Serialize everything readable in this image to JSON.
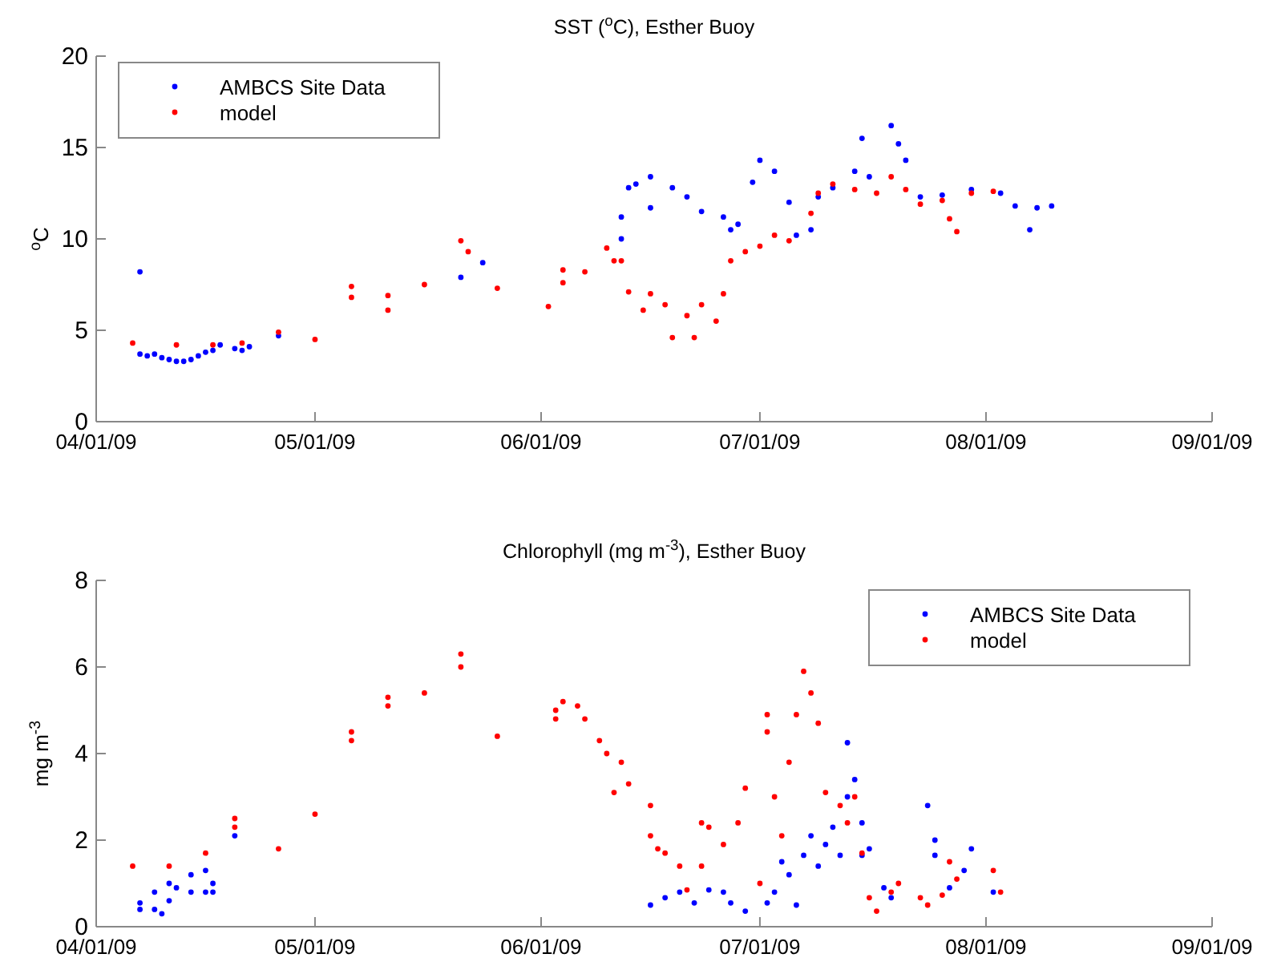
{
  "chart_data": [
    {
      "type": "scatter",
      "title": "SST ($^{o}$C), Esther Buoy",
      "ylabel": "$^{o}$C",
      "xlim": [
        "2009-04-01",
        "2009-09-01"
      ],
      "xticks": [
        {
          "value": "2009-04-01",
          "label": "04/01/09"
        },
        {
          "value": "2009-05-01",
          "label": "05/01/09"
        },
        {
          "value": "2009-06-01",
          "label": "06/01/09"
        },
        {
          "value": "2009-07-01",
          "label": "07/01/09"
        },
        {
          "value": "2009-08-01",
          "label": "08/01/09"
        },
        {
          "value": "2009-09-01",
          "label": "09/01/09"
        }
      ],
      "ylim": [
        0,
        20
      ],
      "yticks": [
        0,
        5,
        10,
        15,
        20
      ],
      "legend": "top left",
      "marker": "circle",
      "grid": false,
      "series": [
        {
          "name": "AMBCS Site Data",
          "color": "#0000ff",
          "x": [
            "2009-04-07",
            "2009-04-07",
            "2009-04-08",
            "2009-04-09",
            "2009-04-10",
            "2009-04-11",
            "2009-04-12",
            "2009-04-13",
            "2009-04-14",
            "2009-04-15",
            "2009-04-16",
            "2009-04-17",
            "2009-04-18",
            "2009-04-20",
            "2009-04-21",
            "2009-04-22",
            "2009-04-26",
            "2009-05-21",
            "2009-05-24",
            "2009-06-12",
            "2009-06-12",
            "2009-06-13",
            "2009-06-14",
            "2009-06-16",
            "2009-06-16",
            "2009-06-19",
            "2009-06-21",
            "2009-06-23",
            "2009-06-26",
            "2009-06-27",
            "2009-06-28",
            "2009-06-30",
            "2009-07-01",
            "2009-07-03",
            "2009-07-05",
            "2009-07-06",
            "2009-07-08",
            "2009-07-09",
            "2009-07-11",
            "2009-07-14",
            "2009-07-15",
            "2009-07-16",
            "2009-07-19",
            "2009-07-20",
            "2009-07-21",
            "2009-07-23",
            "2009-07-26",
            "2009-07-30",
            "2009-08-03",
            "2009-08-05",
            "2009-08-07",
            "2009-08-08",
            "2009-08-10"
          ],
          "values": [
            8.2,
            3.7,
            3.6,
            3.7,
            3.5,
            3.4,
            3.3,
            3.3,
            3.4,
            3.6,
            3.8,
            3.9,
            4.2,
            4.0,
            3.9,
            4.1,
            4.7,
            7.9,
            8.7,
            10.0,
            11.2,
            12.8,
            13.0,
            13.4,
            11.7,
            12.8,
            12.3,
            11.5,
            11.2,
            10.5,
            10.8,
            13.1,
            14.3,
            13.7,
            12.0,
            10.2,
            10.5,
            12.3,
            12.8,
            13.7,
            15.5,
            13.4,
            16.2,
            15.2,
            14.3,
            12.3,
            12.4,
            12.7,
            12.5,
            11.8,
            10.5,
            11.7,
            11.8
          ]
        },
        {
          "name": "model",
          "color": "#ff0000",
          "x": [
            "2009-04-06",
            "2009-04-12",
            "2009-04-17",
            "2009-04-21",
            "2009-04-26",
            "2009-05-01",
            "2009-05-06",
            "2009-05-06",
            "2009-05-11",
            "2009-05-11",
            "2009-05-16",
            "2009-05-21",
            "2009-05-22",
            "2009-05-26",
            "2009-06-02",
            "2009-06-04",
            "2009-06-04",
            "2009-06-07",
            "2009-06-10",
            "2009-06-11",
            "2009-06-12",
            "2009-06-13",
            "2009-06-15",
            "2009-06-16",
            "2009-06-18",
            "2009-06-19",
            "2009-06-21",
            "2009-06-22",
            "2009-06-23",
            "2009-06-25",
            "2009-06-26",
            "2009-06-27",
            "2009-06-29",
            "2009-07-01",
            "2009-07-03",
            "2009-07-05",
            "2009-07-08",
            "2009-07-09",
            "2009-07-11",
            "2009-07-14",
            "2009-07-17",
            "2009-07-19",
            "2009-07-21",
            "2009-07-23",
            "2009-07-26",
            "2009-07-27",
            "2009-07-28",
            "2009-07-30",
            "2009-08-02"
          ],
          "values": [
            4.3,
            4.2,
            4.2,
            4.3,
            4.9,
            4.5,
            7.4,
            6.8,
            6.9,
            6.1,
            7.5,
            9.9,
            9.3,
            7.3,
            6.3,
            8.3,
            7.6,
            8.2,
            9.5,
            8.8,
            8.8,
            7.1,
            6.1,
            7.0,
            6.4,
            4.6,
            5.8,
            4.6,
            6.4,
            5.5,
            7.0,
            8.8,
            9.3,
            9.6,
            10.2,
            9.9,
            11.4,
            12.5,
            13.0,
            12.7,
            12.5,
            13.4,
            12.7,
            11.9,
            12.1,
            11.1,
            10.4,
            12.5,
            12.6
          ]
        }
      ]
    },
    {
      "type": "scatter",
      "title": "Chlorophyll (mg m$^{-3}$), Esther Buoy",
      "ylabel": "mg m$^{-3}$",
      "xlim": [
        "2009-04-01",
        "2009-09-01"
      ],
      "xticks": [
        {
          "value": "2009-04-01",
          "label": "04/01/09"
        },
        {
          "value": "2009-05-01",
          "label": "05/01/09"
        },
        {
          "value": "2009-06-01",
          "label": "06/01/09"
        },
        {
          "value": "2009-07-01",
          "label": "07/01/09"
        },
        {
          "value": "2009-08-01",
          "label": "08/01/09"
        },
        {
          "value": "2009-09-01",
          "label": "09/01/09"
        }
      ],
      "ylim": [
        0,
        8
      ],
      "yticks": [
        0,
        2,
        4,
        6,
        8
      ],
      "legend": "top right",
      "marker": "circle",
      "grid": false,
      "series": [
        {
          "name": "AMBCS Site Data",
          "color": "#0000ff",
          "x": [
            "2009-04-07",
            "2009-04-07",
            "2009-04-09",
            "2009-04-09",
            "2009-04-10",
            "2009-04-11",
            "2009-04-11",
            "2009-04-12",
            "2009-04-14",
            "2009-04-14",
            "2009-04-16",
            "2009-04-16",
            "2009-04-17",
            "2009-04-17",
            "2009-04-20",
            "2009-06-16",
            "2009-06-18",
            "2009-06-20",
            "2009-06-22",
            "2009-06-24",
            "2009-06-26",
            "2009-06-27",
            "2009-06-29",
            "2009-07-02",
            "2009-07-03",
            "2009-07-04",
            "2009-07-05",
            "2009-07-06",
            "2009-07-07",
            "2009-07-08",
            "2009-07-09",
            "2009-07-10",
            "2009-07-11",
            "2009-07-12",
            "2009-07-13",
            "2009-07-13",
            "2009-07-14",
            "2009-07-15",
            "2009-07-15",
            "2009-07-16",
            "2009-07-18",
            "2009-07-19",
            "2009-07-24",
            "2009-07-25",
            "2009-07-25",
            "2009-07-27",
            "2009-07-29",
            "2009-07-30",
            "2009-08-02"
          ],
          "values": [
            0.4,
            0.55,
            0.4,
            0.8,
            0.3,
            0.6,
            1.0,
            0.9,
            0.8,
            1.2,
            1.3,
            0.8,
            1.0,
            0.8,
            2.1,
            0.5,
            0.67,
            0.8,
            0.55,
            0.85,
            0.8,
            0.55,
            0.36,
            0.55,
            0.8,
            1.5,
            1.2,
            0.5,
            1.65,
            2.1,
            1.4,
            1.9,
            2.3,
            1.65,
            4.25,
            3.0,
            3.4,
            2.4,
            1.65,
            1.8,
            0.9,
            0.67,
            2.8,
            2.0,
            1.65,
            0.9,
            1.3,
            1.8,
            0.8
          ]
        },
        {
          "name": "model",
          "color": "#ff0000",
          "x": [
            "2009-04-06",
            "2009-04-11",
            "2009-04-16",
            "2009-04-20",
            "2009-04-20",
            "2009-04-26",
            "2009-05-01",
            "2009-05-06",
            "2009-05-06",
            "2009-05-11",
            "2009-05-11",
            "2009-05-16",
            "2009-05-21",
            "2009-05-21",
            "2009-05-26",
            "2009-06-03",
            "2009-06-03",
            "2009-06-04",
            "2009-06-06",
            "2009-06-07",
            "2009-06-09",
            "2009-06-10",
            "2009-06-11",
            "2009-06-12",
            "2009-06-13",
            "2009-06-16",
            "2009-06-16",
            "2009-06-17",
            "2009-06-18",
            "2009-06-20",
            "2009-06-21",
            "2009-06-23",
            "2009-06-23",
            "2009-06-24",
            "2009-06-26",
            "2009-06-28",
            "2009-06-29",
            "2009-07-01",
            "2009-07-02",
            "2009-07-02",
            "2009-07-03",
            "2009-07-04",
            "2009-07-05",
            "2009-07-06",
            "2009-07-07",
            "2009-07-08",
            "2009-07-09",
            "2009-07-10",
            "2009-07-12",
            "2009-07-13",
            "2009-07-14",
            "2009-07-15",
            "2009-07-16",
            "2009-07-17",
            "2009-07-19",
            "2009-07-20",
            "2009-07-23",
            "2009-07-24",
            "2009-07-26",
            "2009-07-27",
            "2009-07-28",
            "2009-08-02",
            "2009-08-03"
          ],
          "values": [
            1.4,
            1.4,
            1.7,
            2.5,
            2.3,
            1.8,
            2.6,
            4.5,
            4.3,
            5.3,
            5.1,
            5.4,
            6.3,
            6.0,
            4.4,
            5.0,
            4.8,
            5.2,
            5.1,
            4.8,
            4.3,
            4.0,
            3.1,
            3.8,
            3.3,
            2.8,
            2.1,
            1.8,
            1.7,
            1.4,
            0.85,
            1.4,
            2.4,
            2.3,
            1.9,
            2.4,
            3.2,
            1.0,
            4.9,
            4.5,
            3.0,
            2.1,
            3.8,
            4.9,
            5.9,
            5.4,
            4.7,
            3.1,
            2.8,
            2.4,
            3.0,
            1.7,
            0.67,
            0.36,
            0.8,
            1.0,
            0.67,
            0.5,
            0.73,
            1.5,
            1.1,
            1.3,
            0.8
          ]
        }
      ]
    }
  ]
}
